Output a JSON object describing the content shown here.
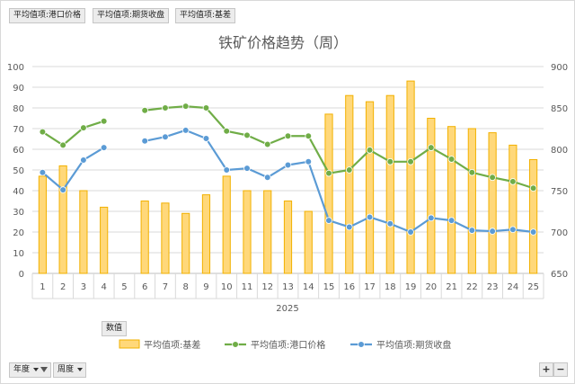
{
  "filter_fields": [
    {
      "label": "平均值项:港口价格"
    },
    {
      "label": "平均值项:期货收盘"
    },
    {
      "label": "平均值项:基差"
    }
  ],
  "values_field": {
    "label": "数值"
  },
  "axis_fields": [
    {
      "label": "年度",
      "has_filter": true
    },
    {
      "label": "周度",
      "has_filter": false
    }
  ],
  "zoom": {
    "plus": "+",
    "minus": "−"
  },
  "colors": {
    "bar_fill": "#ffd87a",
    "bar_stroke": "#f2b100",
    "price": "#70ad47",
    "futures": "#5b9bd5"
  },
  "chart_data": {
    "type": "bar+line",
    "title": "铁矿价格趋势（周）",
    "year_label": "2025",
    "categories": [
      "1",
      "2",
      "3",
      "4",
      "5",
      "6",
      "7",
      "8",
      "9",
      "10",
      "11",
      "12",
      "13",
      "14",
      "15",
      "16",
      "17",
      "18",
      "19",
      "20",
      "21",
      "22",
      "23",
      "24",
      "25"
    ],
    "y_left": {
      "min": 0,
      "max": 100,
      "ticks": [
        0,
        10,
        20,
        30,
        40,
        50,
        60,
        70,
        80,
        90,
        100
      ]
    },
    "y_right": {
      "min": 650,
      "max": 900,
      "ticks": [
        650,
        700,
        750,
        800,
        850,
        900
      ]
    },
    "grid": true,
    "legend_position": "bottom",
    "series": [
      {
        "name": "平均值项:基差",
        "kind": "bar",
        "axis": "left",
        "values": [
          47,
          52,
          40,
          32,
          null,
          35,
          34,
          29,
          38,
          47,
          40,
          40,
          35,
          30,
          77,
          86,
          83,
          86,
          93,
          75,
          71,
          70,
          68,
          62,
          55
        ]
      },
      {
        "name": "平均值项:港口价格",
        "kind": "line",
        "axis": "right",
        "values": [
          821,
          805,
          826,
          834,
          null,
          847,
          850,
          852,
          850,
          822,
          817,
          806,
          816,
          816,
          771,
          775,
          799,
          785,
          785,
          802,
          788,
          772,
          766,
          761,
          753
        ]
      },
      {
        "name": "平均值项:期货收盘",
        "kind": "line",
        "axis": "right",
        "values": [
          772,
          751,
          787,
          802,
          null,
          810,
          815,
          823,
          813,
          775,
          777,
          766,
          781,
          785,
          714,
          706,
          718,
          710,
          700,
          717,
          714,
          702,
          701,
          703,
          700
        ]
      }
    ]
  }
}
